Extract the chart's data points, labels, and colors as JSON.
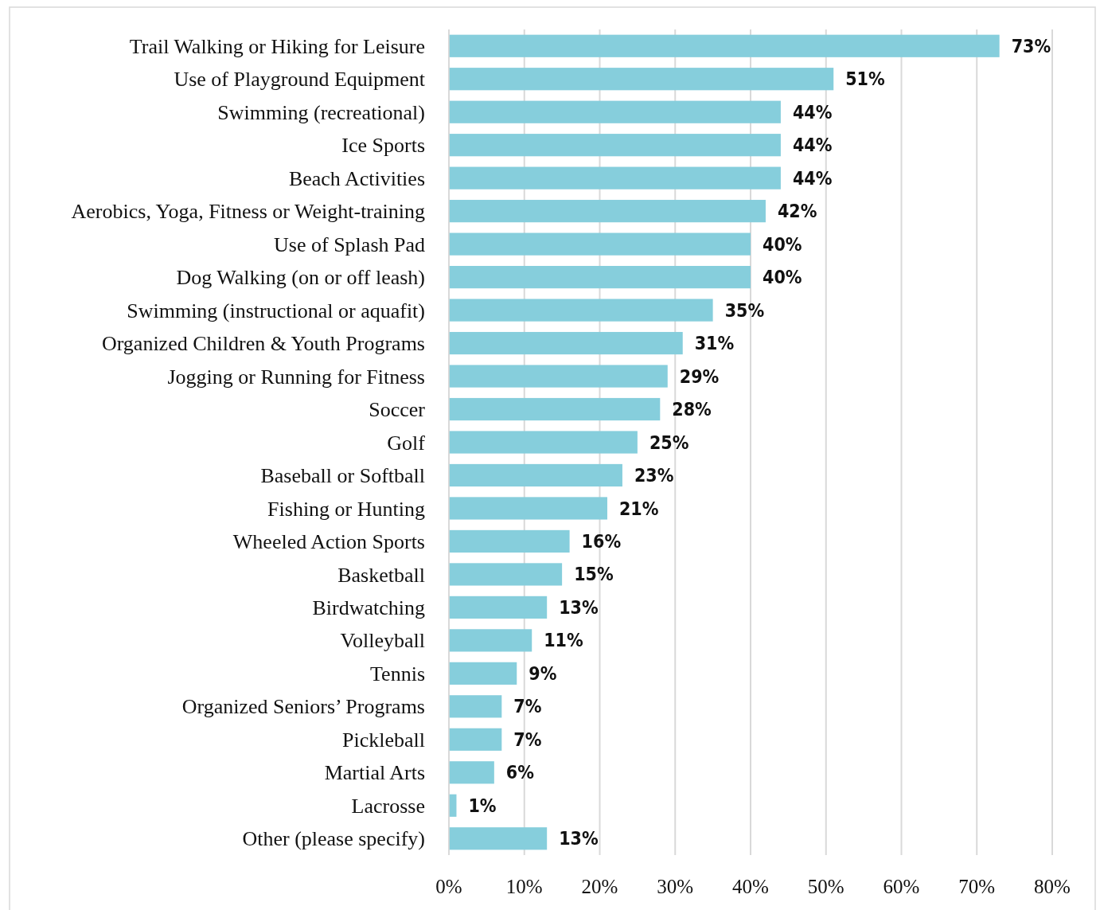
{
  "chart_data": {
    "type": "bar",
    "orientation": "horizontal",
    "categories": [
      "Trail Walking or Hiking for Leisure",
      "Use of Playground Equipment",
      "Swimming (recreational)",
      "Ice Sports",
      "Beach Activities",
      "Aerobics, Yoga, Fitness or Weight-training",
      "Use of Splash Pad",
      "Dog Walking (on or off leash)",
      "Swimming (instructional or aquafit)",
      "Organized Children & Youth Programs",
      "Jogging or Running for Fitness",
      "Soccer",
      "Golf",
      "Baseball or Softball",
      "Fishing or Hunting",
      "Wheeled Action Sports",
      "Basketball",
      "Birdwatching",
      "Volleyball",
      "Tennis",
      "Organized Seniors’ Programs",
      "Pickleball",
      "Martial Arts",
      "Lacrosse",
      "Other (please specify)"
    ],
    "values": [
      73,
      51,
      44,
      44,
      44,
      42,
      40,
      40,
      35,
      31,
      29,
      28,
      25,
      23,
      21,
      16,
      15,
      13,
      11,
      9,
      7,
      7,
      6,
      1,
      13
    ],
    "color": "#86cedc",
    "xlim": [
      0,
      80
    ],
    "xticks": [
      {
        "value": 0,
        "label": "0%"
      },
      {
        "value": 10,
        "label": "10%"
      },
      {
        "value": 20,
        "label": "20%"
      },
      {
        "value": 30,
        "label": "30%"
      },
      {
        "value": 40,
        "label": "40%"
      },
      {
        "value": 50,
        "label": "50%"
      },
      {
        "value": 60,
        "label": "60%"
      },
      {
        "value": 70,
        "label": "70%"
      },
      {
        "value": 80,
        "label": "80%"
      }
    ],
    "grid": "x",
    "value_labels": [
      "73%",
      "51%",
      "44%",
      "44%",
      "44%",
      "42%",
      "40%",
      "40%",
      "35%",
      "31%",
      "29%",
      "28%",
      "25%",
      "23%",
      "21%",
      "16%",
      "15%",
      "13%",
      "11%",
      "9%",
      "7%",
      "7%",
      "6%",
      "1%",
      "13%"
    ]
  }
}
